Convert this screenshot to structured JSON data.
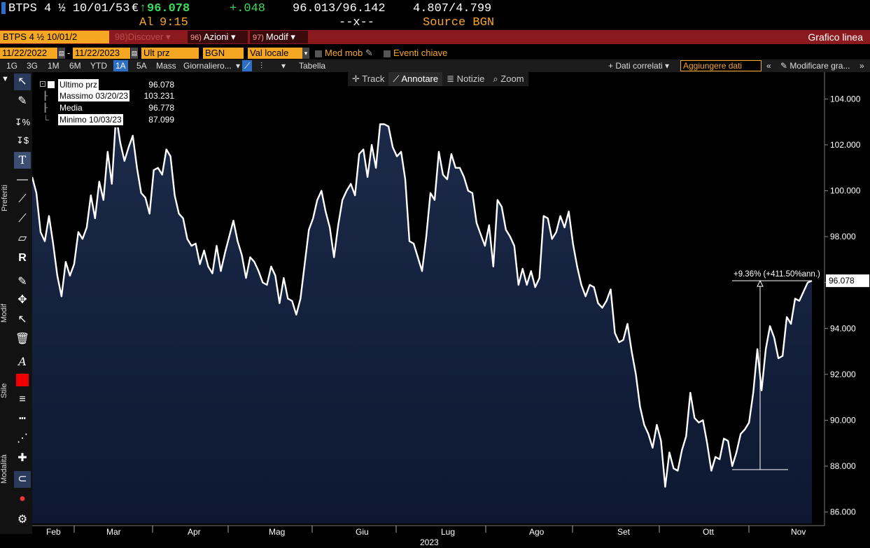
{
  "quote": {
    "ticker": "BTPS 4 ½ 10/01/53",
    "currency": "€",
    "arrow": "↑",
    "last": "96.078",
    "change": "+.048",
    "bid_ask": "96.013/96.142",
    "yields": "4.807/4.799",
    "time_label": "Al",
    "time": "9:15",
    "size": "--x--",
    "source": "Source BGN"
  },
  "toolbar": {
    "security": "BTPS 4 ½ 10/01/2",
    "discover_num": "98)",
    "discover": "Discover",
    "actions_num": "96)",
    "actions": "Azioni",
    "modify_num": "97)",
    "modify": "Modif",
    "chart_type": "Grafico linea"
  },
  "params": {
    "start_date": "11/22/2022",
    "end_date": "11/22/2023",
    "field": "Ult prz",
    "source": "BGN",
    "currency": "Val locale",
    "moving_avg": "Med mob",
    "key_events": "Eventi chiave"
  },
  "ranges": {
    "items": [
      "1G",
      "3G",
      "1M",
      "6M",
      "YTD",
      "1A",
      "5A",
      "Mass"
    ],
    "active": "1A",
    "frequency": "Giornaliero",
    "table": "Tabella",
    "related": "Dati correlati",
    "add_data": "Aggiungere dati",
    "modify_chart": "Modificare gra..."
  },
  "side": {
    "favorites": "Preferiti",
    "modify": "Modif",
    "style": "Stile",
    "mode": "Modalità"
  },
  "chart_tools": {
    "track": "Track",
    "annotate": "Annotare",
    "news": "Notizie",
    "zoom": "Zoom"
  },
  "legend": {
    "last_label": "Ultimo prz",
    "last_value": "96.078",
    "high_label": "Massimo 03/20/23",
    "high_value": "103.231",
    "avg_label": "Media",
    "avg_value": "96.778",
    "low_label": "Minimo 10/03/23",
    "low_value": "87.099"
  },
  "colors": {
    "line": "#ffffff",
    "fill_top": "#1c2a4a",
    "fill_bottom": "#0d1830",
    "accent": "#f5a623",
    "red_bar": "#8b1a1f",
    "up": "#3ddc5a"
  },
  "chart_data": {
    "type": "area",
    "x_label": "2023",
    "months": [
      "Feb",
      "Mar",
      "Apr",
      "Mag",
      "Giu",
      "Lug",
      "Ago",
      "Set",
      "Ott",
      "Nov"
    ],
    "ylim": [
      85.5,
      104.5
    ],
    "yticks": [
      "104.000",
      "102.000",
      "100.000",
      "98.000",
      "96.000",
      "94.000",
      "92.000",
      "90.000",
      "88.000",
      "86.000"
    ],
    "last_value_label": "96.078",
    "annotation": "+9.36% (+411.50%ann.)",
    "annotation_range": [
      87.85,
      96.078
    ],
    "values": [
      100.6,
      99.9,
      98.2,
      97.8,
      98.9,
      97.7,
      96.3,
      95.4,
      96.9,
      96.3,
      96.8,
      98.2,
      97.9,
      98.4,
      99.8,
      98.8,
      100.4,
      99.6,
      101.7,
      100.3,
      103.3,
      102.1,
      101.3,
      101.9,
      102.4,
      101.0,
      99.9,
      99.7,
      99.0,
      100.9,
      101.0,
      100.7,
      101.8,
      101.5,
      99.8,
      99.0,
      98.8,
      97.9,
      97.6,
      97.7,
      96.8,
      97.4,
      96.7,
      96.4,
      97.6,
      96.5,
      97.3,
      98.0,
      98.7,
      97.8,
      97.2,
      96.2,
      97.1,
      96.9,
      96.5,
      96.0,
      95.9,
      96.7,
      96.3,
      95.1,
      96.2,
      95.3,
      95.2,
      94.6,
      95.3,
      96.8,
      98.3,
      98.8,
      99.6,
      100.0,
      99.1,
      98.4,
      97.1,
      98.5,
      99.6,
      100.0,
      100.3,
      99.8,
      101.6,
      101.8,
      100.6,
      102.0,
      101.0,
      102.9,
      102.9,
      102.8,
      101.9,
      101.5,
      101.7,
      100.5,
      97.8,
      97.7,
      97.1,
      96.5,
      98.0,
      99.9,
      99.6,
      101.7,
      100.7,
      100.5,
      101.6,
      101.0,
      101.0,
      100.6,
      100.0,
      99.9,
      98.6,
      98.1,
      97.6,
      98.5,
      96.7,
      99.6,
      99.3,
      98.3,
      98.0,
      97.6,
      95.9,
      96.6,
      95.9,
      96.5,
      95.8,
      96.2,
      98.9,
      98.8,
      97.9,
      98.2,
      98.9,
      98.4,
      99.1,
      97.7,
      96.7,
      95.9,
      95.4,
      95.9,
      95.8,
      95.1,
      94.9,
      95.2,
      95.7,
      93.8,
      93.4,
      93.5,
      94.2,
      93.0,
      92.0,
      90.6,
      89.8,
      89.4,
      88.8,
      89.8,
      89.1,
      87.1,
      88.6,
      87.9,
      87.8,
      88.7,
      89.3,
      91.2,
      90.1,
      89.9,
      90.0,
      89.0,
      87.8,
      88.4,
      88.3,
      89.2,
      89.1,
      88.0,
      88.6,
      89.4,
      89.6,
      89.9,
      91.2,
      93.1,
      91.3,
      93.1,
      94.1,
      93.6,
      92.7,
      92.8,
      94.5,
      94.2,
      95.3,
      95.2,
      95.6,
      96.0,
      96.078
    ]
  }
}
